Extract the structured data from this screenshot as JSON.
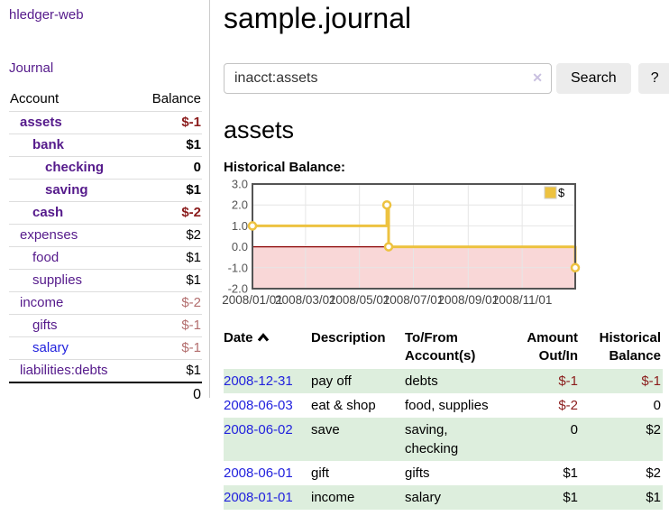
{
  "colors": {
    "visited_link": "#551a8b",
    "unvisited_link": "#2222dd",
    "negative_strong": "#8b1c1c",
    "negative_muted": "#b36e6e",
    "row_shade_green": "#ddeedd",
    "clear_icon": "#c9c0e0",
    "button_bg": "#ececec",
    "series_gold": "#edc240",
    "chart_negative_region": "#f9d7d7",
    "chart_zero_line": "#8b0000",
    "chart_border": "#545454",
    "chart_grid": "#e6e6e6",
    "chart_tick_text": "#545454"
  },
  "sidebar": {
    "brand": "hledger-web",
    "journal_link": "Journal",
    "accounts": {
      "headers": {
        "account": "Account",
        "balance": "Balance"
      },
      "rows": [
        {
          "name": "assets",
          "depth": 1,
          "bold": true,
          "link": "visited",
          "balance": "$-1",
          "balance_style": "neg"
        },
        {
          "name": "bank",
          "depth": 2,
          "bold": true,
          "link": "visited",
          "balance": "$1",
          "balance_style": "plain"
        },
        {
          "name": "checking",
          "depth": 3,
          "bold": true,
          "link": "visited",
          "balance": "0",
          "balance_style": "plain"
        },
        {
          "name": "saving",
          "depth": 3,
          "bold": true,
          "link": "visited",
          "balance": "$1",
          "balance_style": "plain"
        },
        {
          "name": "cash",
          "depth": 2,
          "bold": true,
          "link": "visited",
          "balance": "$-2",
          "balance_style": "neg"
        },
        {
          "name": "expenses",
          "depth": 1,
          "bold": false,
          "link": "visited",
          "balance": "$2",
          "balance_style": "plain"
        },
        {
          "name": "food",
          "depth": 2,
          "bold": false,
          "link": "visited",
          "balance": "$1",
          "balance_style": "plain"
        },
        {
          "name": "supplies",
          "depth": 2,
          "bold": false,
          "link": "visited",
          "balance": "$1",
          "balance_style": "plain"
        },
        {
          "name": "income",
          "depth": 1,
          "bold": false,
          "link": "visited",
          "balance": "$-2",
          "balance_style": "neg-muted"
        },
        {
          "name": "gifts",
          "depth": 2,
          "bold": false,
          "link": "visited",
          "balance": "$-1",
          "balance_style": "neg-muted"
        },
        {
          "name": "salary",
          "depth": 2,
          "bold": false,
          "link": "unvisited",
          "balance": "$-1",
          "balance_style": "neg-muted"
        },
        {
          "name": "liabilities:debts",
          "depth": 1,
          "bold": false,
          "link": "visited",
          "balance": "$1",
          "balance_style": "plain"
        }
      ],
      "total": "0"
    }
  },
  "main": {
    "title": "sample.journal",
    "search": {
      "value": "inacct:assets",
      "clear_icon": "✕",
      "button_label": "Search",
      "help_label": "?"
    },
    "account_heading": "assets",
    "chart_label": "Historical Balance:"
  },
  "chart_data": {
    "type": "line",
    "step": true,
    "title": "Historical Balance",
    "x_range": [
      "2008-01-01",
      "2008-12-31"
    ],
    "ylim": [
      -2,
      3
    ],
    "yticks": [
      3.0,
      2.0,
      1.0,
      0.0,
      -1.0,
      -2.0
    ],
    "ytick_labels": [
      "3.0",
      "2.0",
      "1.0",
      "0.0",
      "-1.0",
      "-2.0"
    ],
    "xticks": [
      "2008/01/01",
      "2008/03/01",
      "2008/05/01",
      "2008/07/01",
      "2008/09/01",
      "2008/11/01"
    ],
    "grid": true,
    "legend": {
      "label": "$",
      "position": "top-right"
    },
    "series": [
      {
        "name": "$",
        "color": "#edc240",
        "points": [
          [
            "2008-01-01",
            1
          ],
          [
            "2008-06-01",
            2
          ],
          [
            "2008-06-03",
            0
          ],
          [
            "2008-12-31",
            -1
          ]
        ]
      }
    ]
  },
  "register": {
    "headers": {
      "date": "Date",
      "description": "Description",
      "accounts": "To/From Account(s)",
      "amount": "Amount Out/In",
      "balance": "Historical Balance"
    },
    "rows": [
      {
        "date": "2008-12-31",
        "description": "pay off",
        "accounts": "debts",
        "amount": "$-1",
        "amount_style": "neg",
        "balance": "$-1",
        "balance_style": "neg",
        "shaded": true
      },
      {
        "date": "2008-06-03",
        "description": "eat & shop",
        "accounts": "food, supplies",
        "amount": "$-2",
        "amount_style": "neg",
        "balance": "0",
        "balance_style": "plain",
        "shaded": false
      },
      {
        "date": "2008-06-02",
        "description": "save",
        "accounts": "saving, checking",
        "amount": "0",
        "amount_style": "plain",
        "balance": "$2",
        "balance_style": "plain",
        "shaded": true
      },
      {
        "date": "2008-06-01",
        "description": "gift",
        "accounts": "gifts",
        "amount": "$1",
        "amount_style": "plain",
        "balance": "$2",
        "balance_style": "plain",
        "shaded": false
      },
      {
        "date": "2008-01-01",
        "description": "income",
        "accounts": "salary",
        "amount": "$1",
        "amount_style": "plain",
        "balance": "$1",
        "balance_style": "plain",
        "shaded": true
      }
    ]
  }
}
